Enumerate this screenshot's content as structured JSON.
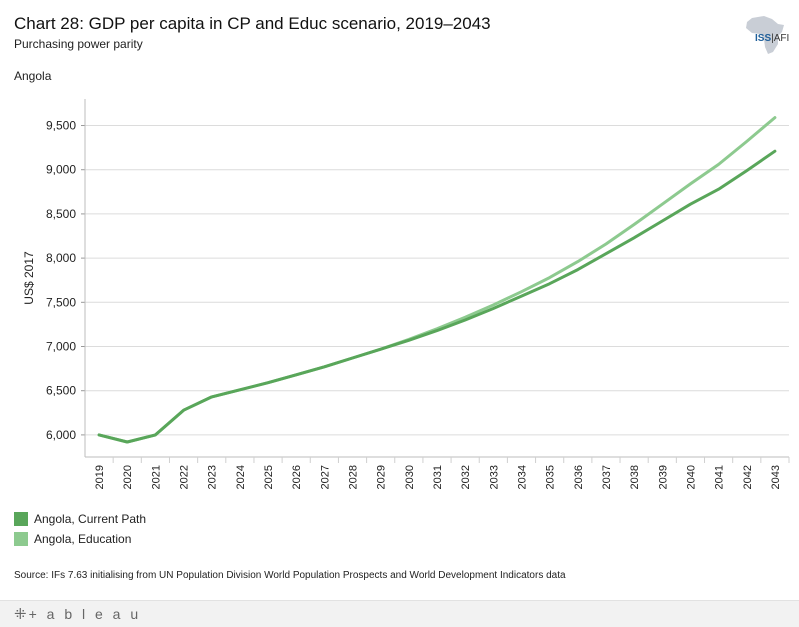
{
  "header": {
    "title": "Chart 28: GDP per capita in CP and Educ scenario, 2019–2043",
    "subtitle": "Purchasing power parity",
    "country": "Angola",
    "logo_text_iss": "ISS",
    "logo_text_afi": "AFI"
  },
  "chart_data": {
    "type": "line",
    "x": [
      "2019",
      "2020",
      "2021",
      "2022",
      "2023",
      "2024",
      "2025",
      "2026",
      "2027",
      "2028",
      "2029",
      "2030",
      "2031",
      "2032",
      "2033",
      "2034",
      "2035",
      "2036",
      "2037",
      "2038",
      "2039",
      "2040",
      "2041",
      "2042",
      "2043"
    ],
    "ylabel": "US$ 2017",
    "xlabel": "",
    "ylim": [
      5750,
      9800
    ],
    "yticks": [
      6000,
      6500,
      7000,
      7500,
      8000,
      8500,
      9000,
      9500
    ],
    "ytick_labels": [
      "6,000",
      "6,500",
      "7,000",
      "7,500",
      "8,000",
      "8,500",
      "9,000",
      "9,500"
    ],
    "grid": true,
    "legend_position": "bottom-left",
    "series": [
      {
        "name": "Angola,  Current Path",
        "color": "#59a65a",
        "values": [
          6000,
          5920,
          6000,
          6280,
          6430,
          6510,
          6590,
          6680,
          6770,
          6870,
          6970,
          7070,
          7180,
          7300,
          7430,
          7570,
          7710,
          7870,
          8050,
          8230,
          8420,
          8610,
          8780,
          8990,
          9210
        ]
      },
      {
        "name": "Angola,  Education",
        "color": "#8dca8f",
        "values": [
          6000,
          5920,
          6000,
          6280,
          6430,
          6510,
          6590,
          6680,
          6770,
          6870,
          6970,
          7080,
          7200,
          7330,
          7470,
          7620,
          7780,
          7960,
          8160,
          8380,
          8610,
          8840,
          9060,
          9320,
          9590
        ]
      }
    ]
  },
  "legend": {
    "items": [
      {
        "label": "Angola,  Current Path",
        "color": "#59a65a"
      },
      {
        "label": "Angola,  Education",
        "color": "#8dca8f"
      }
    ]
  },
  "source": "Source: IFs 7.63 initialising from UN Population Division World Population Prospects and World Development Indicators data",
  "footer": {
    "brand": "+ a b l e a u",
    "mark": "⁜"
  }
}
